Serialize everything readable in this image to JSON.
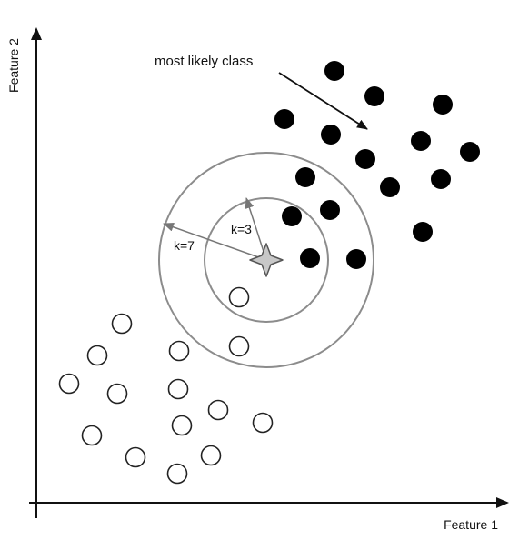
{
  "axes": {
    "x_label": "Feature 1",
    "y_label": "Feature 2"
  },
  "annotation": {
    "text": "most likely class"
  },
  "neighborhoods": [
    {
      "label": "k=3",
      "k": 3
    },
    {
      "label": "k=7",
      "k": 7
    }
  ],
  "colors": {
    "axis": "#111111",
    "circle_stroke": "#8c8c8c",
    "filled_point": "#000000",
    "open_point_stroke": "#222222",
    "query_point_fill": "#c8c8c8",
    "query_point_stroke": "#555555",
    "radius_arrow": "#777777"
  }
}
